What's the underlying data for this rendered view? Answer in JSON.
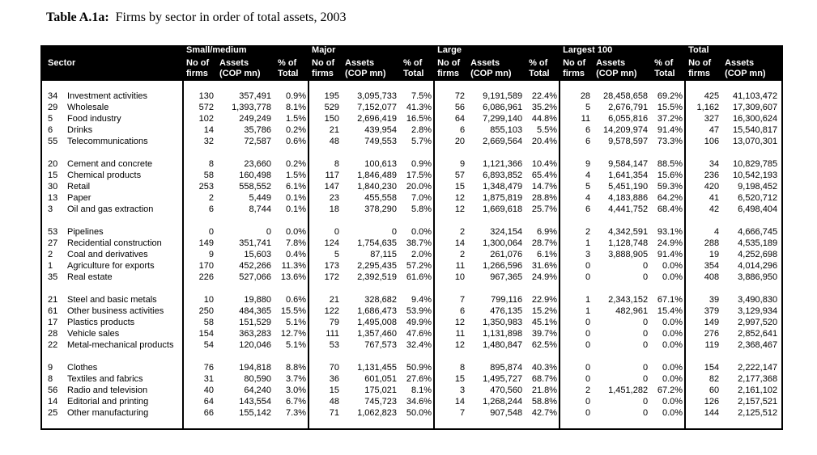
{
  "page": {
    "background": "#ffffff"
  },
  "title": {
    "label": "Table A.1a:",
    "text": "Firms by sector in order of total assets, 2003"
  },
  "table": {
    "colors": {
      "header_bg": "#000000",
      "header_text": "#ffffff",
      "body_text": "#000000",
      "border": "#000000"
    },
    "sector_header": "Sector",
    "groups": [
      {
        "label": "Small/medium",
        "cols": [
          "No of\nfirms",
          "Assets\n(COP mn)",
          "% of\nTotal"
        ]
      },
      {
        "label": "Major",
        "cols": [
          "No of\nfirms",
          "Assets\n(COP mn)",
          "% of\nTotal"
        ]
      },
      {
        "label": "Large",
        "cols": [
          "No of\nfirms",
          "Assets\n(COP mn)",
          "% of\nTotal"
        ]
      },
      {
        "label": "Largest 100",
        "cols": [
          "No of\nfirms",
          "Assets\n(COP mn)",
          "% of\nTotal"
        ]
      },
      {
        "label": "Total",
        "cols": [
          "No of\nfirms",
          "Assets\n(COP mn)"
        ]
      }
    ],
    "row_groups": [
      [
        {
          "code": "34",
          "sector": "Investment activities",
          "values": [
            "130",
            "357,491",
            "0.9%",
            "195",
            "3,095,733",
            "7.5%",
            "72",
            "9,191,589",
            "22.4%",
            "28",
            "28,458,658",
            "69.2%",
            "425",
            "41,103,472"
          ]
        },
        {
          "code": "29",
          "sector": "Wholesale",
          "values": [
            "572",
            "1,393,778",
            "8.1%",
            "529",
            "7,152,077",
            "41.3%",
            "56",
            "6,086,961",
            "35.2%",
            "5",
            "2,676,791",
            "15.5%",
            "1,162",
            "17,309,607"
          ]
        },
        {
          "code": "5",
          "sector": "Food industry",
          "values": [
            "102",
            "249,249",
            "1.5%",
            "150",
            "2,696,419",
            "16.5%",
            "64",
            "7,299,140",
            "44.8%",
            "11",
            "6,055,816",
            "37.2%",
            "327",
            "16,300,624"
          ]
        },
        {
          "code": "6",
          "sector": "Drinks",
          "values": [
            "14",
            "35,786",
            "0.2%",
            "21",
            "439,954",
            "2.8%",
            "6",
            "855,103",
            "5.5%",
            "6",
            "14,209,974",
            "91.4%",
            "47",
            "15,540,817"
          ]
        },
        {
          "code": "55",
          "sector": "Telecommunications",
          "values": [
            "32",
            "72,587",
            "0.6%",
            "48",
            "749,553",
            "5.7%",
            "20",
            "2,669,564",
            "20.4%",
            "6",
            "9,578,597",
            "73.3%",
            "106",
            "13,070,301"
          ]
        }
      ],
      [
        {
          "code": "20",
          "sector": "Cement and concrete",
          "values": [
            "8",
            "23,660",
            "0.2%",
            "8",
            "100,613",
            "0.9%",
            "9",
            "1,121,366",
            "10.4%",
            "9",
            "9,584,147",
            "88.5%",
            "34",
            "10,829,785"
          ]
        },
        {
          "code": "15",
          "sector": "Chemical products",
          "values": [
            "58",
            "160,498",
            "1.5%",
            "117",
            "1,846,489",
            "17.5%",
            "57",
            "6,893,852",
            "65.4%",
            "4",
            "1,641,354",
            "15.6%",
            "236",
            "10,542,193"
          ]
        },
        {
          "code": "30",
          "sector": "Retail",
          "values": [
            "253",
            "558,552",
            "6.1%",
            "147",
            "1,840,230",
            "20.0%",
            "15",
            "1,348,479",
            "14.7%",
            "5",
            "5,451,190",
            "59.3%",
            "420",
            "9,198,452"
          ]
        },
        {
          "code": "13",
          "sector": "Paper",
          "values": [
            "2",
            "5,449",
            "0.1%",
            "23",
            "455,558",
            "7.0%",
            "12",
            "1,875,819",
            "28.8%",
            "4",
            "4,183,886",
            "64.2%",
            "41",
            "6,520,712"
          ]
        },
        {
          "code": "3",
          "sector": "Oil and gas extraction",
          "values": [
            "6",
            "8,744",
            "0.1%",
            "18",
            "378,290",
            "5.8%",
            "12",
            "1,669,618",
            "25.7%",
            "6",
            "4,441,752",
            "68.4%",
            "42",
            "6,498,404"
          ]
        }
      ],
      [
        {
          "code": "53",
          "sector": "Pipelines",
          "values": [
            "0",
            "0",
            "0.0%",
            "0",
            "0",
            "0.0%",
            "2",
            "324,154",
            "6.9%",
            "2",
            "4,342,591",
            "93.1%",
            "4",
            "4,666,745"
          ]
        },
        {
          "code": "27",
          "sector": "Recidential construction",
          "values": [
            "149",
            "351,741",
            "7.8%",
            "124",
            "1,754,635",
            "38.7%",
            "14",
            "1,300,064",
            "28.7%",
            "1",
            "1,128,748",
            "24.9%",
            "288",
            "4,535,189"
          ]
        },
        {
          "code": "2",
          "sector": "Coal and derivatives",
          "values": [
            "9",
            "15,603",
            "0.4%",
            "5",
            "87,115",
            "2.0%",
            "2",
            "261,076",
            "6.1%",
            "3",
            "3,888,905",
            "91.4%",
            "19",
            "4,252,698"
          ]
        },
        {
          "code": "1",
          "sector": "Agriculture for exports",
          "values": [
            "170",
            "452,266",
            "11.3%",
            "173",
            "2,295,435",
            "57.2%",
            "11",
            "1,266,596",
            "31.6%",
            "0",
            "0",
            "0.0%",
            "354",
            "4,014,296"
          ]
        },
        {
          "code": "35",
          "sector": "Real estate",
          "values": [
            "226",
            "527,066",
            "13.6%",
            "172",
            "2,392,519",
            "61.6%",
            "10",
            "967,365",
            "24.9%",
            "0",
            "0",
            "0.0%",
            "408",
            "3,886,950"
          ]
        }
      ],
      [
        {
          "code": "21",
          "sector": "Steel and basic metals",
          "values": [
            "10",
            "19,880",
            "0.6%",
            "21",
            "328,682",
            "9.4%",
            "7",
            "799,116",
            "22.9%",
            "1",
            "2,343,152",
            "67.1%",
            "39",
            "3,490,830"
          ]
        },
        {
          "code": "61",
          "sector": "Other business activities",
          "values": [
            "250",
            "484,365",
            "15.5%",
            "122",
            "1,686,473",
            "53.9%",
            "6",
            "476,135",
            "15.2%",
            "1",
            "482,961",
            "15.4%",
            "379",
            "3,129,934"
          ]
        },
        {
          "code": "17",
          "sector": "Plastics products",
          "values": [
            "58",
            "151,529",
            "5.1%",
            "79",
            "1,495,008",
            "49.9%",
            "12",
            "1,350,983",
            "45.1%",
            "0",
            "0",
            "0.0%",
            "149",
            "2,997,520"
          ]
        },
        {
          "code": "28",
          "sector": "Vehicle sales",
          "values": [
            "154",
            "363,283",
            "12.7%",
            "111",
            "1,357,460",
            "47.6%",
            "11",
            "1,131,898",
            "39.7%",
            "0",
            "0",
            "0.0%",
            "276",
            "2,852,641"
          ]
        },
        {
          "code": "22",
          "sector": "Metal-mechanical products",
          "values": [
            "54",
            "120,046",
            "5.1%",
            "53",
            "767,573",
            "32.4%",
            "12",
            "1,480,847",
            "62.5%",
            "0",
            "0",
            "0.0%",
            "119",
            "2,368,467"
          ]
        }
      ],
      [
        {
          "code": "9",
          "sector": "Clothes",
          "values": [
            "76",
            "194,818",
            "8.8%",
            "70",
            "1,131,455",
            "50.9%",
            "8",
            "895,874",
            "40.3%",
            "0",
            "0",
            "0.0%",
            "154",
            "2,222,147"
          ]
        },
        {
          "code": "8",
          "sector": "Textiles and fabrics",
          "values": [
            "31",
            "80,590",
            "3.7%",
            "36",
            "601,051",
            "27.6%",
            "15",
            "1,495,727",
            "68.7%",
            "0",
            "0",
            "0.0%",
            "82",
            "2,177,368"
          ]
        },
        {
          "code": "56",
          "sector": "Radio and television",
          "values": [
            "40",
            "64,240",
            "3.0%",
            "15",
            "175,021",
            "8.1%",
            "3",
            "470,560",
            "21.8%",
            "2",
            "1,451,282",
            "67.2%",
            "60",
            "2,161,102"
          ]
        },
        {
          "code": "14",
          "sector": "Editorial and printing",
          "values": [
            "64",
            "143,554",
            "6.7%",
            "48",
            "745,723",
            "34.6%",
            "14",
            "1,268,244",
            "58.8%",
            "0",
            "0",
            "0.0%",
            "126",
            "2,157,521"
          ]
        },
        {
          "code": "25",
          "sector": "Other manufacturing",
          "values": [
            "66",
            "155,142",
            "7.3%",
            "71",
            "1,062,823",
            "50.0%",
            "7",
            "907,548",
            "42.7%",
            "0",
            "0",
            "0.0%",
            "144",
            "2,125,512"
          ]
        }
      ]
    ]
  }
}
